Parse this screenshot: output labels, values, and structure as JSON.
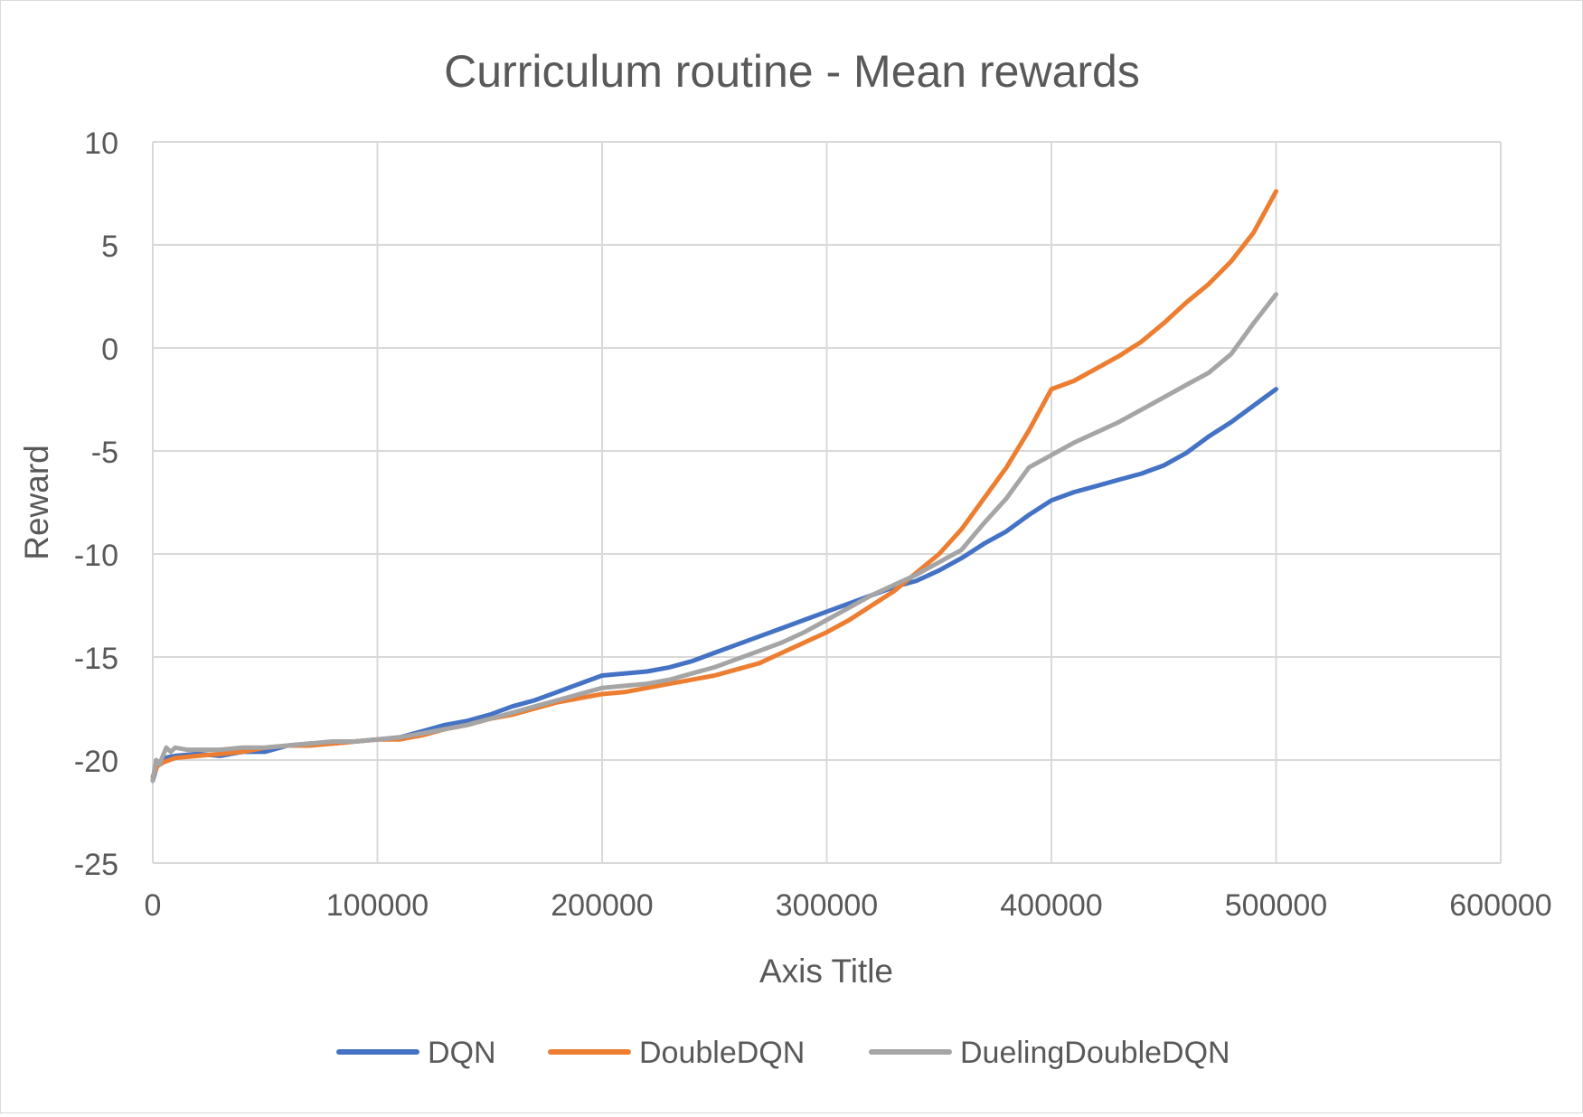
{
  "chart_data": {
    "type": "line",
    "title": "Curriculum routine - Mean rewards",
    "xlabel": "Axis Title",
    "ylabel": "Reward",
    "xlim": [
      0,
      600000
    ],
    "ylim": [
      -25,
      10
    ],
    "x_ticks": [
      0,
      100000,
      200000,
      300000,
      400000,
      500000,
      600000
    ],
    "y_ticks": [
      10,
      5,
      0,
      -5,
      -10,
      -15,
      -20,
      -25
    ],
    "grid": true,
    "legend_position": "bottom",
    "series": [
      {
        "name": "DQN",
        "color": "#4472c4",
        "points": [
          [
            0,
            -21
          ],
          [
            2000,
            -20.2
          ],
          [
            5000,
            -19.9
          ],
          [
            10000,
            -19.8
          ],
          [
            20000,
            -19.7
          ],
          [
            30000,
            -19.8
          ],
          [
            40000,
            -19.6
          ],
          [
            50000,
            -19.6
          ],
          [
            60000,
            -19.3
          ],
          [
            70000,
            -19.2
          ],
          [
            80000,
            -19.2
          ],
          [
            90000,
            -19.1
          ],
          [
            100000,
            -19.0
          ],
          [
            110000,
            -18.9
          ],
          [
            120000,
            -18.6
          ],
          [
            130000,
            -18.3
          ],
          [
            140000,
            -18.1
          ],
          [
            150000,
            -17.8
          ],
          [
            160000,
            -17.4
          ],
          [
            170000,
            -17.1
          ],
          [
            180000,
            -16.7
          ],
          [
            190000,
            -16.3
          ],
          [
            200000,
            -15.9
          ],
          [
            210000,
            -15.8
          ],
          [
            220000,
            -15.7
          ],
          [
            230000,
            -15.5
          ],
          [
            240000,
            -15.2
          ],
          [
            250000,
            -14.8
          ],
          [
            260000,
            -14.4
          ],
          [
            270000,
            -14.0
          ],
          [
            280000,
            -13.6
          ],
          [
            290000,
            -13.2
          ],
          [
            300000,
            -12.8
          ],
          [
            310000,
            -12.4
          ],
          [
            320000,
            -12.0
          ],
          [
            330000,
            -11.6
          ],
          [
            340000,
            -11.3
          ],
          [
            350000,
            -10.8
          ],
          [
            360000,
            -10.2
          ],
          [
            370000,
            -9.5
          ],
          [
            380000,
            -8.9
          ],
          [
            390000,
            -8.1
          ],
          [
            400000,
            -7.4
          ],
          [
            410000,
            -7.0
          ],
          [
            420000,
            -6.7
          ],
          [
            430000,
            -6.4
          ],
          [
            440000,
            -6.1
          ],
          [
            450000,
            -5.7
          ],
          [
            460000,
            -5.1
          ],
          [
            470000,
            -4.3
          ],
          [
            480000,
            -3.6
          ],
          [
            490000,
            -2.8
          ],
          [
            500000,
            -2.0
          ]
        ]
      },
      {
        "name": "DoubleDQN",
        "color": "#ed7d31",
        "points": [
          [
            0,
            -20.8
          ],
          [
            2000,
            -20.3
          ],
          [
            5000,
            -20.1
          ],
          [
            10000,
            -19.9
          ],
          [
            20000,
            -19.8
          ],
          [
            30000,
            -19.7
          ],
          [
            40000,
            -19.6
          ],
          [
            50000,
            -19.4
          ],
          [
            60000,
            -19.3
          ],
          [
            70000,
            -19.3
          ],
          [
            80000,
            -19.2
          ],
          [
            90000,
            -19.1
          ],
          [
            100000,
            -19.0
          ],
          [
            110000,
            -19.0
          ],
          [
            120000,
            -18.8
          ],
          [
            130000,
            -18.5
          ],
          [
            140000,
            -18.3
          ],
          [
            150000,
            -18.0
          ],
          [
            160000,
            -17.8
          ],
          [
            170000,
            -17.5
          ],
          [
            180000,
            -17.2
          ],
          [
            190000,
            -17.0
          ],
          [
            200000,
            -16.8
          ],
          [
            210000,
            -16.7
          ],
          [
            220000,
            -16.5
          ],
          [
            230000,
            -16.3
          ],
          [
            240000,
            -16.1
          ],
          [
            250000,
            -15.9
          ],
          [
            260000,
            -15.6
          ],
          [
            270000,
            -15.3
          ],
          [
            280000,
            -14.8
          ],
          [
            290000,
            -14.3
          ],
          [
            300000,
            -13.8
          ],
          [
            310000,
            -13.2
          ],
          [
            320000,
            -12.5
          ],
          [
            330000,
            -11.8
          ],
          [
            340000,
            -10.9
          ],
          [
            350000,
            -10.0
          ],
          [
            360000,
            -8.8
          ],
          [
            370000,
            -7.3
          ],
          [
            380000,
            -5.8
          ],
          [
            390000,
            -4.0
          ],
          [
            400000,
            -2.0
          ],
          [
            410000,
            -1.6
          ],
          [
            420000,
            -1.0
          ],
          [
            430000,
            -0.4
          ],
          [
            440000,
            0.3
          ],
          [
            450000,
            1.2
          ],
          [
            460000,
            2.2
          ],
          [
            470000,
            3.1
          ],
          [
            480000,
            4.2
          ],
          [
            490000,
            5.6
          ],
          [
            500000,
            7.6
          ]
        ]
      },
      {
        "name": "DuelingDoubleDQN",
        "color": "#a5a5a5",
        "points": [
          [
            0,
            -21
          ],
          [
            1500,
            -20.0
          ],
          [
            3000,
            -20.2
          ],
          [
            6000,
            -19.4
          ],
          [
            8000,
            -19.6
          ],
          [
            10000,
            -19.4
          ],
          [
            15000,
            -19.5
          ],
          [
            20000,
            -19.5
          ],
          [
            30000,
            -19.5
          ],
          [
            40000,
            -19.4
          ],
          [
            50000,
            -19.4
          ],
          [
            60000,
            -19.3
          ],
          [
            70000,
            -19.2
          ],
          [
            80000,
            -19.1
          ],
          [
            90000,
            -19.1
          ],
          [
            100000,
            -19.0
          ],
          [
            110000,
            -18.9
          ],
          [
            120000,
            -18.7
          ],
          [
            130000,
            -18.5
          ],
          [
            140000,
            -18.3
          ],
          [
            150000,
            -18.0
          ],
          [
            160000,
            -17.7
          ],
          [
            170000,
            -17.4
          ],
          [
            180000,
            -17.1
          ],
          [
            190000,
            -16.8
          ],
          [
            200000,
            -16.5
          ],
          [
            210000,
            -16.4
          ],
          [
            220000,
            -16.3
          ],
          [
            230000,
            -16.1
          ],
          [
            240000,
            -15.8
          ],
          [
            250000,
            -15.5
          ],
          [
            260000,
            -15.1
          ],
          [
            270000,
            -14.7
          ],
          [
            280000,
            -14.3
          ],
          [
            290000,
            -13.8
          ],
          [
            300000,
            -13.2
          ],
          [
            310000,
            -12.6
          ],
          [
            320000,
            -12.0
          ],
          [
            330000,
            -11.5
          ],
          [
            340000,
            -11.0
          ],
          [
            350000,
            -10.4
          ],
          [
            360000,
            -9.8
          ],
          [
            370000,
            -8.5
          ],
          [
            380000,
            -7.3
          ],
          [
            390000,
            -5.8
          ],
          [
            400000,
            -5.2
          ],
          [
            410000,
            -4.6
          ],
          [
            420000,
            -4.1
          ],
          [
            430000,
            -3.6
          ],
          [
            440000,
            -3.0
          ],
          [
            450000,
            -2.4
          ],
          [
            460000,
            -1.8
          ],
          [
            470000,
            -1.2
          ],
          [
            480000,
            -0.3
          ],
          [
            490000,
            1.2
          ],
          [
            500000,
            2.6
          ]
        ]
      }
    ]
  }
}
